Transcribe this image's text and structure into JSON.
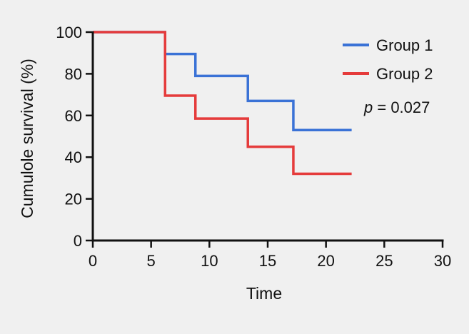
{
  "chart_data": {
    "type": "line",
    "step": true,
    "title": "",
    "xlabel": "Time",
    "ylabel": "Cumulole survival (%)",
    "xlim": [
      0,
      30
    ],
    "ylim": [
      0,
      100
    ],
    "xticks": [
      0,
      5,
      10,
      15,
      20,
      25,
      30
    ],
    "yticks": [
      0,
      20,
      40,
      60,
      80,
      100
    ],
    "grid": false,
    "legend_position": "top-right",
    "series": [
      {
        "name": "Group 1",
        "color": "#3a72d6",
        "x": [
          0,
          6.2,
          8.8,
          13.3,
          17.2,
          22.2
        ],
        "y": [
          100,
          89.5,
          79,
          67,
          53,
          53
        ]
      },
      {
        "name": "Group 2",
        "color": "#e53b3b",
        "x": [
          0,
          6.2,
          8.8,
          13.3,
          17.2,
          22.2
        ],
        "y": [
          100,
          69.5,
          58.5,
          45,
          32,
          32
        ]
      }
    ],
    "annotation": {
      "p_symbol": "p",
      "rest": " = 0.027"
    }
  }
}
